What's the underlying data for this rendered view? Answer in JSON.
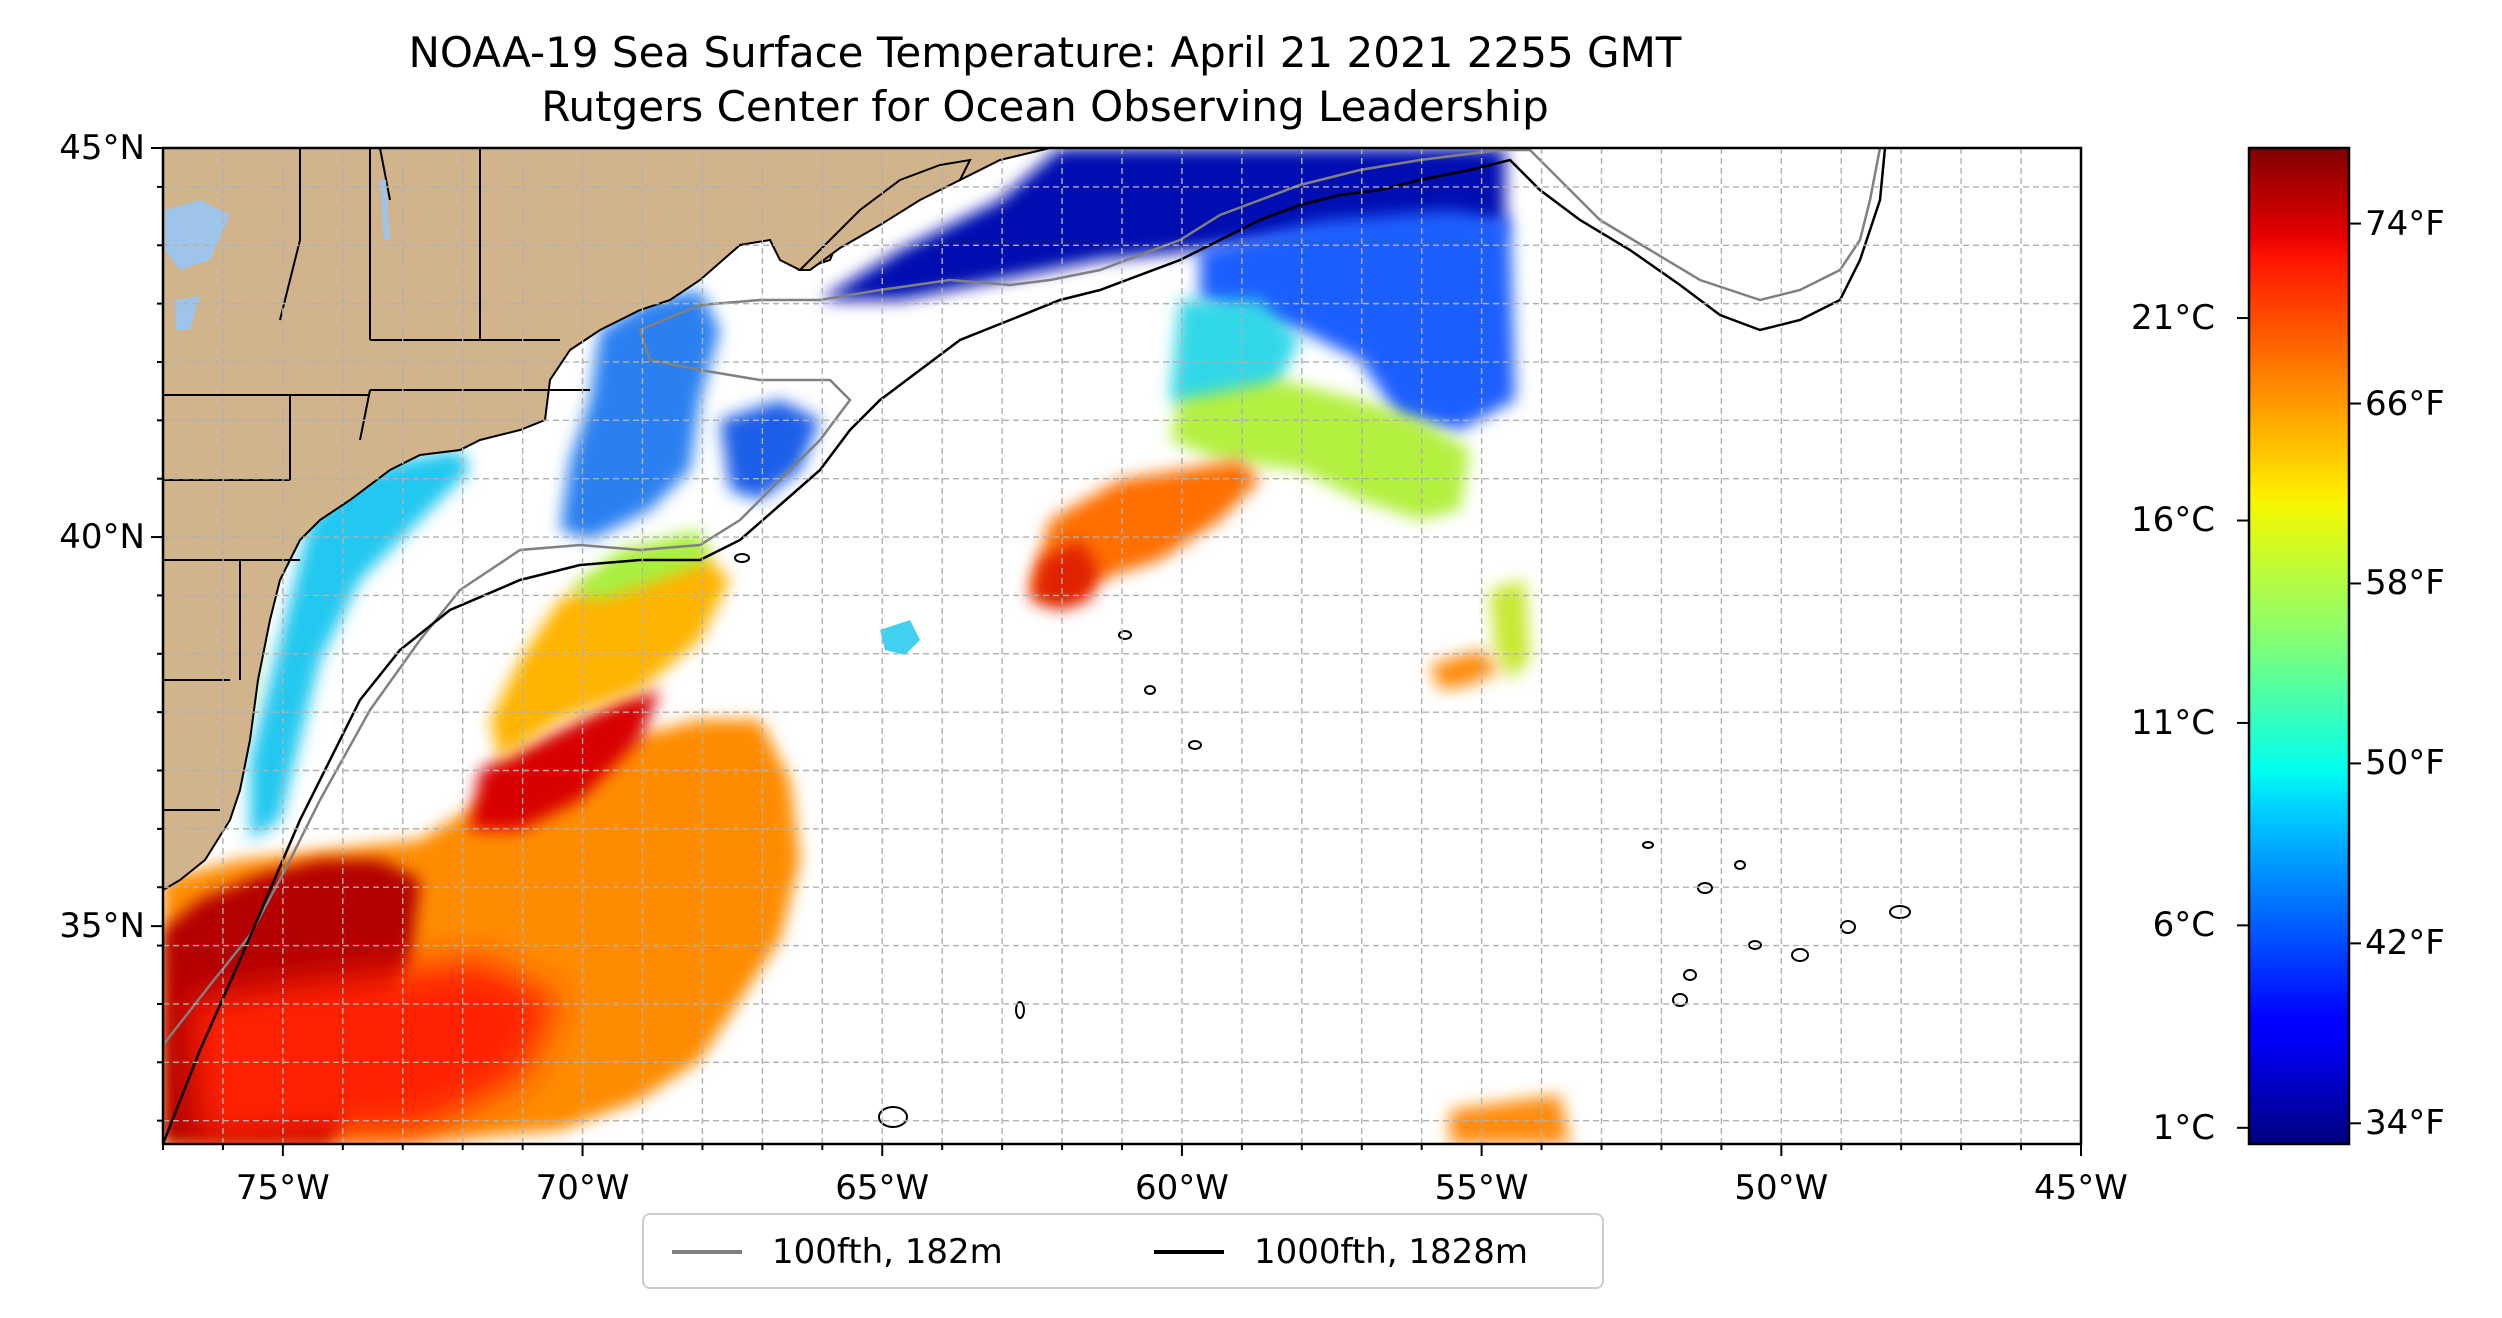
{
  "title": "NOAA-19 Sea Surface Temperature: April 21 2021 2255 GMT",
  "subtitle": "Rutgers Center for Ocean Observing Leadership",
  "lat_ticks": [
    {
      "label": "45°N",
      "value": 45
    },
    {
      "label": "40°N",
      "value": 40
    },
    {
      "label": "35°N",
      "value": 35
    }
  ],
  "lon_ticks": [
    {
      "label": "75°W",
      "value": -75
    },
    {
      "label": "70°W",
      "value": -70
    },
    {
      "label": "65°W",
      "value": -65
    },
    {
      "label": "60°W",
      "value": -60
    },
    {
      "label": "55°W",
      "value": -55
    },
    {
      "label": "50°W",
      "value": -50
    },
    {
      "label": "45°W",
      "value": -45
    }
  ],
  "extent": {
    "lon": [
      -77,
      -45
    ],
    "lat": [
      32.2,
      45
    ]
  },
  "colorbar": {
    "colormap": "jet",
    "range_c": [
      0.6,
      25.2
    ],
    "celsius_ticks": [
      {
        "label": "1°C",
        "value": 1
      },
      {
        "label": "6°C",
        "value": 6
      },
      {
        "label": "11°C",
        "value": 11
      },
      {
        "label": "16°C",
        "value": 16
      },
      {
        "label": "21°C",
        "value": 21
      }
    ],
    "fahrenheit_ticks": [
      {
        "label": "34°F",
        "value": 34
      },
      {
        "label": "42°F",
        "value": 42
      },
      {
        "label": "50°F",
        "value": 50
      },
      {
        "label": "58°F",
        "value": 58
      },
      {
        "label": "66°F",
        "value": 66
      },
      {
        "label": "74°F",
        "value": 74
      }
    ]
  },
  "legend": [
    {
      "label": "100fth, 182m",
      "color": "#808080"
    },
    {
      "label": "1000fth, 1828m",
      "color": "#000000"
    }
  ],
  "colors": {
    "land": "#d2b48c",
    "lakes": "#9fc4ea",
    "ocean": "#ffffff",
    "grid": "#b0b0b0"
  }
}
